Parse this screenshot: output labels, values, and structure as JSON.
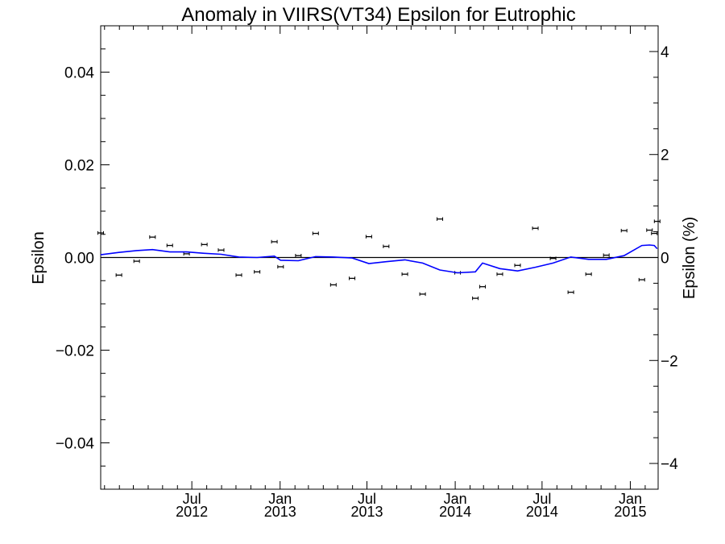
{
  "chart_data": {
    "type": "scatter",
    "title": "Anomaly in VIIRS(VT34) Epsilon for Eutrophic",
    "ylabel": "Epsilon",
    "y2label": "Epsilon (%)",
    "ylim": [
      -0.05,
      0.05
    ],
    "y2lim": [
      -4.5,
      4.5
    ],
    "xlim": [
      "2011-12-24",
      "2015-02-28"
    ],
    "yticks": [
      0.04,
      0.02,
      0.0,
      -0.02,
      -0.04
    ],
    "yticklabels": [
      "0.04",
      "0.02",
      "0.00",
      "−0.02",
      "−0.04"
    ],
    "y2ticks": [
      4,
      2,
      0,
      -2,
      -4
    ],
    "y2ticklabels": [
      "4",
      "2",
      "0",
      "−2",
      "−4"
    ],
    "xticks": [
      {
        "date": "2012-07-01",
        "month": "Jul",
        "year": "2012"
      },
      {
        "date": "2013-01-01",
        "month": "Jan",
        "year": "2013"
      },
      {
        "date": "2013-07-01",
        "month": "Jul",
        "year": "2013"
      },
      {
        "date": "2014-01-01",
        "month": "Jan",
        "year": "2014"
      },
      {
        "date": "2014-07-01",
        "month": "Jul",
        "year": "2014"
      },
      {
        "date": "2015-01-01",
        "month": "Jan",
        "year": "2015"
      }
    ],
    "reference_line": 0.0,
    "series": [
      {
        "kind": "points_with_error_bars",
        "color": "#000000",
        "points": [
          {
            "x": "2011-12-24",
            "y": 0.0053
          },
          {
            "x": "2012-01-31",
            "y": -0.0038
          },
          {
            "x": "2012-03-08",
            "y": -0.0008
          },
          {
            "x": "2012-04-10",
            "y": 0.0044
          },
          {
            "x": "2012-05-16",
            "y": 0.0026
          },
          {
            "x": "2012-06-20",
            "y": 0.0008
          },
          {
            "x": "2012-07-27",
            "y": 0.0028
          },
          {
            "x": "2012-08-31",
            "y": 0.0016
          },
          {
            "x": "2012-10-07",
            "y": -0.0038
          },
          {
            "x": "2012-11-14",
            "y": -0.0031
          },
          {
            "x": "2012-12-20",
            "y": 0.0034
          },
          {
            "x": "2013-01-02",
            "y": -0.002
          },
          {
            "x": "2013-02-08",
            "y": 0.0004
          },
          {
            "x": "2013-03-16",
            "y": 0.0052
          },
          {
            "x": "2013-04-22",
            "y": -0.0059
          },
          {
            "x": "2013-05-31",
            "y": -0.0045
          },
          {
            "x": "2013-07-05",
            "y": 0.0045
          },
          {
            "x": "2013-08-10",
            "y": 0.0024
          },
          {
            "x": "2013-09-18",
            "y": -0.0036
          },
          {
            "x": "2013-10-25",
            "y": -0.0079
          },
          {
            "x": "2013-11-30",
            "y": 0.0083
          },
          {
            "x": "2014-01-06",
            "y": -0.0033
          },
          {
            "x": "2014-02-12",
            "y": -0.0088
          },
          {
            "x": "2014-02-27",
            "y": -0.0063
          },
          {
            "x": "2014-04-04",
            "y": -0.0036
          },
          {
            "x": "2014-05-11",
            "y": -0.0017
          },
          {
            "x": "2014-06-17",
            "y": 0.0063
          },
          {
            "x": "2014-07-24",
            "y": -0.0002
          },
          {
            "x": "2014-08-30",
            "y": -0.0075
          },
          {
            "x": "2014-10-06",
            "y": -0.0036
          },
          {
            "x": "2014-11-12",
            "y": 0.0005
          },
          {
            "x": "2014-12-19",
            "y": 0.0058
          },
          {
            "x": "2015-01-25",
            "y": -0.0048
          },
          {
            "x": "2015-02-10",
            "y": 0.0059
          },
          {
            "x": "2015-02-20",
            "y": 0.0052
          },
          {
            "x": "2015-02-26",
            "y": 0.0078
          }
        ]
      },
      {
        "kind": "line",
        "color": "#0000ff",
        "points": [
          {
            "x": "2011-12-24",
            "y": 0.0006
          },
          {
            "x": "2012-01-31",
            "y": 0.0011
          },
          {
            "x": "2012-03-08",
            "y": 0.0015
          },
          {
            "x": "2012-04-10",
            "y": 0.0017
          },
          {
            "x": "2012-05-16",
            "y": 0.0012
          },
          {
            "x": "2012-06-20",
            "y": 0.0012
          },
          {
            "x": "2012-07-27",
            "y": 0.0009
          },
          {
            "x": "2012-08-31",
            "y": 0.0007
          },
          {
            "x": "2012-10-07",
            "y": 0.0001
          },
          {
            "x": "2012-11-14",
            "y": 0.0
          },
          {
            "x": "2012-12-20",
            "y": 0.0003
          },
          {
            "x": "2013-01-02",
            "y": -0.0006
          },
          {
            "x": "2013-02-08",
            "y": -0.0007
          },
          {
            "x": "2013-03-16",
            "y": 0.0002
          },
          {
            "x": "2013-04-22",
            "y": 0.0001
          },
          {
            "x": "2013-05-31",
            "y": -0.0001
          },
          {
            "x": "2013-07-05",
            "y": -0.0013
          },
          {
            "x": "2013-08-10",
            "y": -0.0009
          },
          {
            "x": "2013-09-18",
            "y": -0.0005
          },
          {
            "x": "2013-10-25",
            "y": -0.0012
          },
          {
            "x": "2013-11-30",
            "y": -0.0027
          },
          {
            "x": "2014-01-06",
            "y": -0.0033
          },
          {
            "x": "2014-02-12",
            "y": -0.0031
          },
          {
            "x": "2014-02-27",
            "y": -0.0012
          },
          {
            "x": "2014-04-04",
            "y": -0.0024
          },
          {
            "x": "2014-05-11",
            "y": -0.0029
          },
          {
            "x": "2014-06-17",
            "y": -0.0021
          },
          {
            "x": "2014-07-24",
            "y": -0.0012
          },
          {
            "x": "2014-08-30",
            "y": 0.0001
          },
          {
            "x": "2014-10-06",
            "y": -0.0004
          },
          {
            "x": "2014-11-12",
            "y": -0.0004
          },
          {
            "x": "2014-12-19",
            "y": 0.0004
          },
          {
            "x": "2015-01-25",
            "y": 0.0026
          },
          {
            "x": "2015-02-10",
            "y": 0.0027
          },
          {
            "x": "2015-02-20",
            "y": 0.0026
          },
          {
            "x": "2015-02-26",
            "y": 0.0019
          }
        ]
      }
    ]
  }
}
